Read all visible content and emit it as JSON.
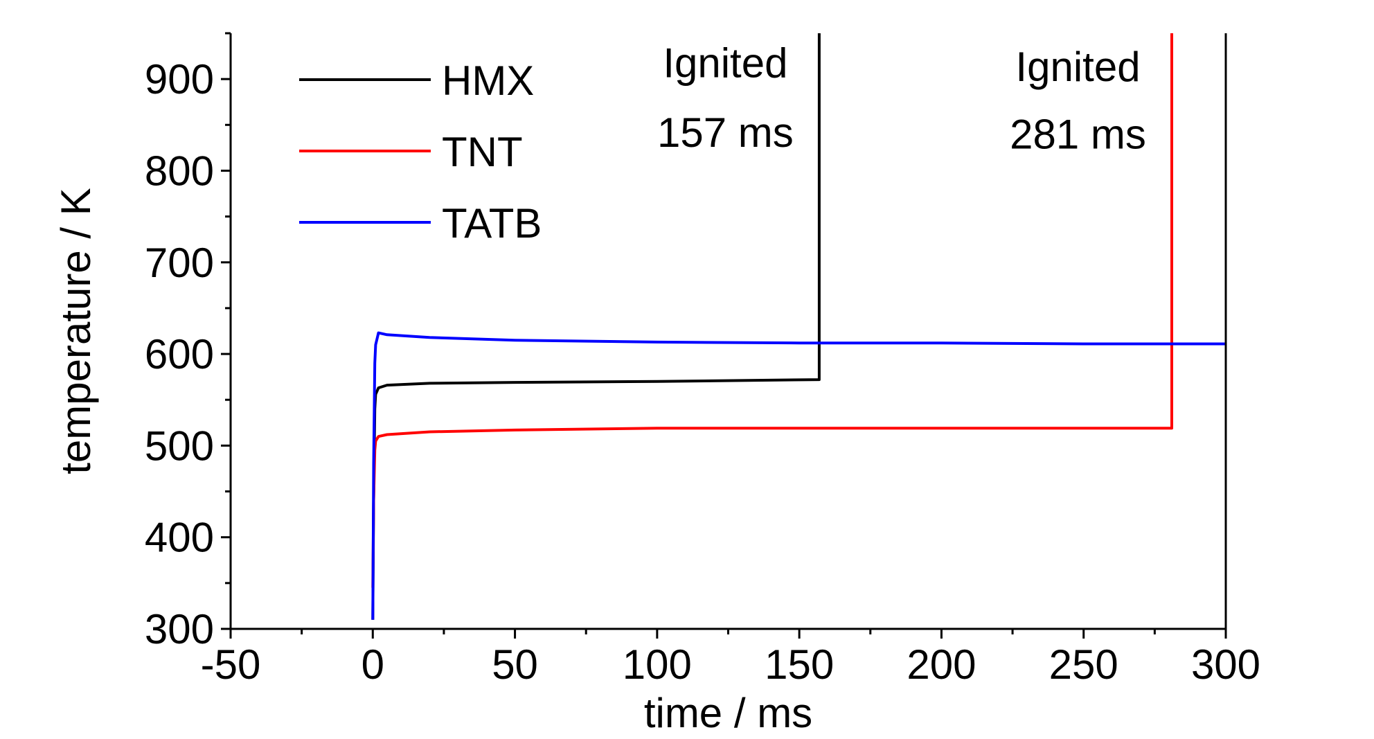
{
  "chart_data": {
    "type": "line",
    "title": "",
    "xlabel": "time / ms",
    "ylabel": "temperature / K",
    "xlim": [
      -50,
      300
    ],
    "ylim": [
      300,
      950
    ],
    "x_ticks": [
      -50,
      0,
      50,
      100,
      150,
      200,
      250,
      300
    ],
    "x_tick_labels": [
      "-50",
      "0",
      "50",
      "100",
      "150",
      "200",
      "250",
      "300"
    ],
    "y_ticks": [
      300,
      400,
      500,
      600,
      700,
      800,
      900
    ],
    "y_tick_labels": [
      "300",
      "400",
      "500",
      "600",
      "700",
      "800",
      "900"
    ],
    "grid": false,
    "legend_position": "top-left",
    "series": [
      {
        "name": "HMX",
        "color": "#000000",
        "points": [
          [
            0,
            310
          ],
          [
            0.3,
            440
          ],
          [
            0.7,
            540
          ],
          [
            1,
            556
          ],
          [
            2,
            563
          ],
          [
            5,
            566
          ],
          [
            20,
            568
          ],
          [
            50,
            569
          ],
          [
            100,
            570
          ],
          [
            157,
            572
          ],
          [
            157,
            950
          ]
        ]
      },
      {
        "name": "TNT",
        "color": "#ff0000",
        "points": [
          [
            0,
            345
          ],
          [
            0.3,
            440
          ],
          [
            0.7,
            495
          ],
          [
            1,
            505
          ],
          [
            2,
            510
          ],
          [
            5,
            512
          ],
          [
            20,
            515
          ],
          [
            50,
            517
          ],
          [
            100,
            519
          ],
          [
            200,
            519
          ],
          [
            281,
            519
          ],
          [
            281,
            950
          ]
        ]
      },
      {
        "name": "TATB",
        "color": "#0000ff",
        "points": [
          [
            0,
            310
          ],
          [
            0.3,
            480
          ],
          [
            0.7,
            590
          ],
          [
            1,
            610
          ],
          [
            2,
            623
          ],
          [
            5,
            621
          ],
          [
            20,
            618
          ],
          [
            50,
            615
          ],
          [
            100,
            613
          ],
          [
            150,
            612
          ],
          [
            200,
            612
          ],
          [
            250,
            611
          ],
          [
            300,
            611
          ]
        ]
      }
    ],
    "annotations": [
      {
        "lines": [
          "Ignited",
          "157 ms"
        ],
        "x": 124,
        "y": [
          902,
          826
        ]
      },
      {
        "lines": [
          "Ignited",
          "281 ms"
        ],
        "x": 248,
        "y": [
          898,
          824
        ]
      }
    ]
  }
}
